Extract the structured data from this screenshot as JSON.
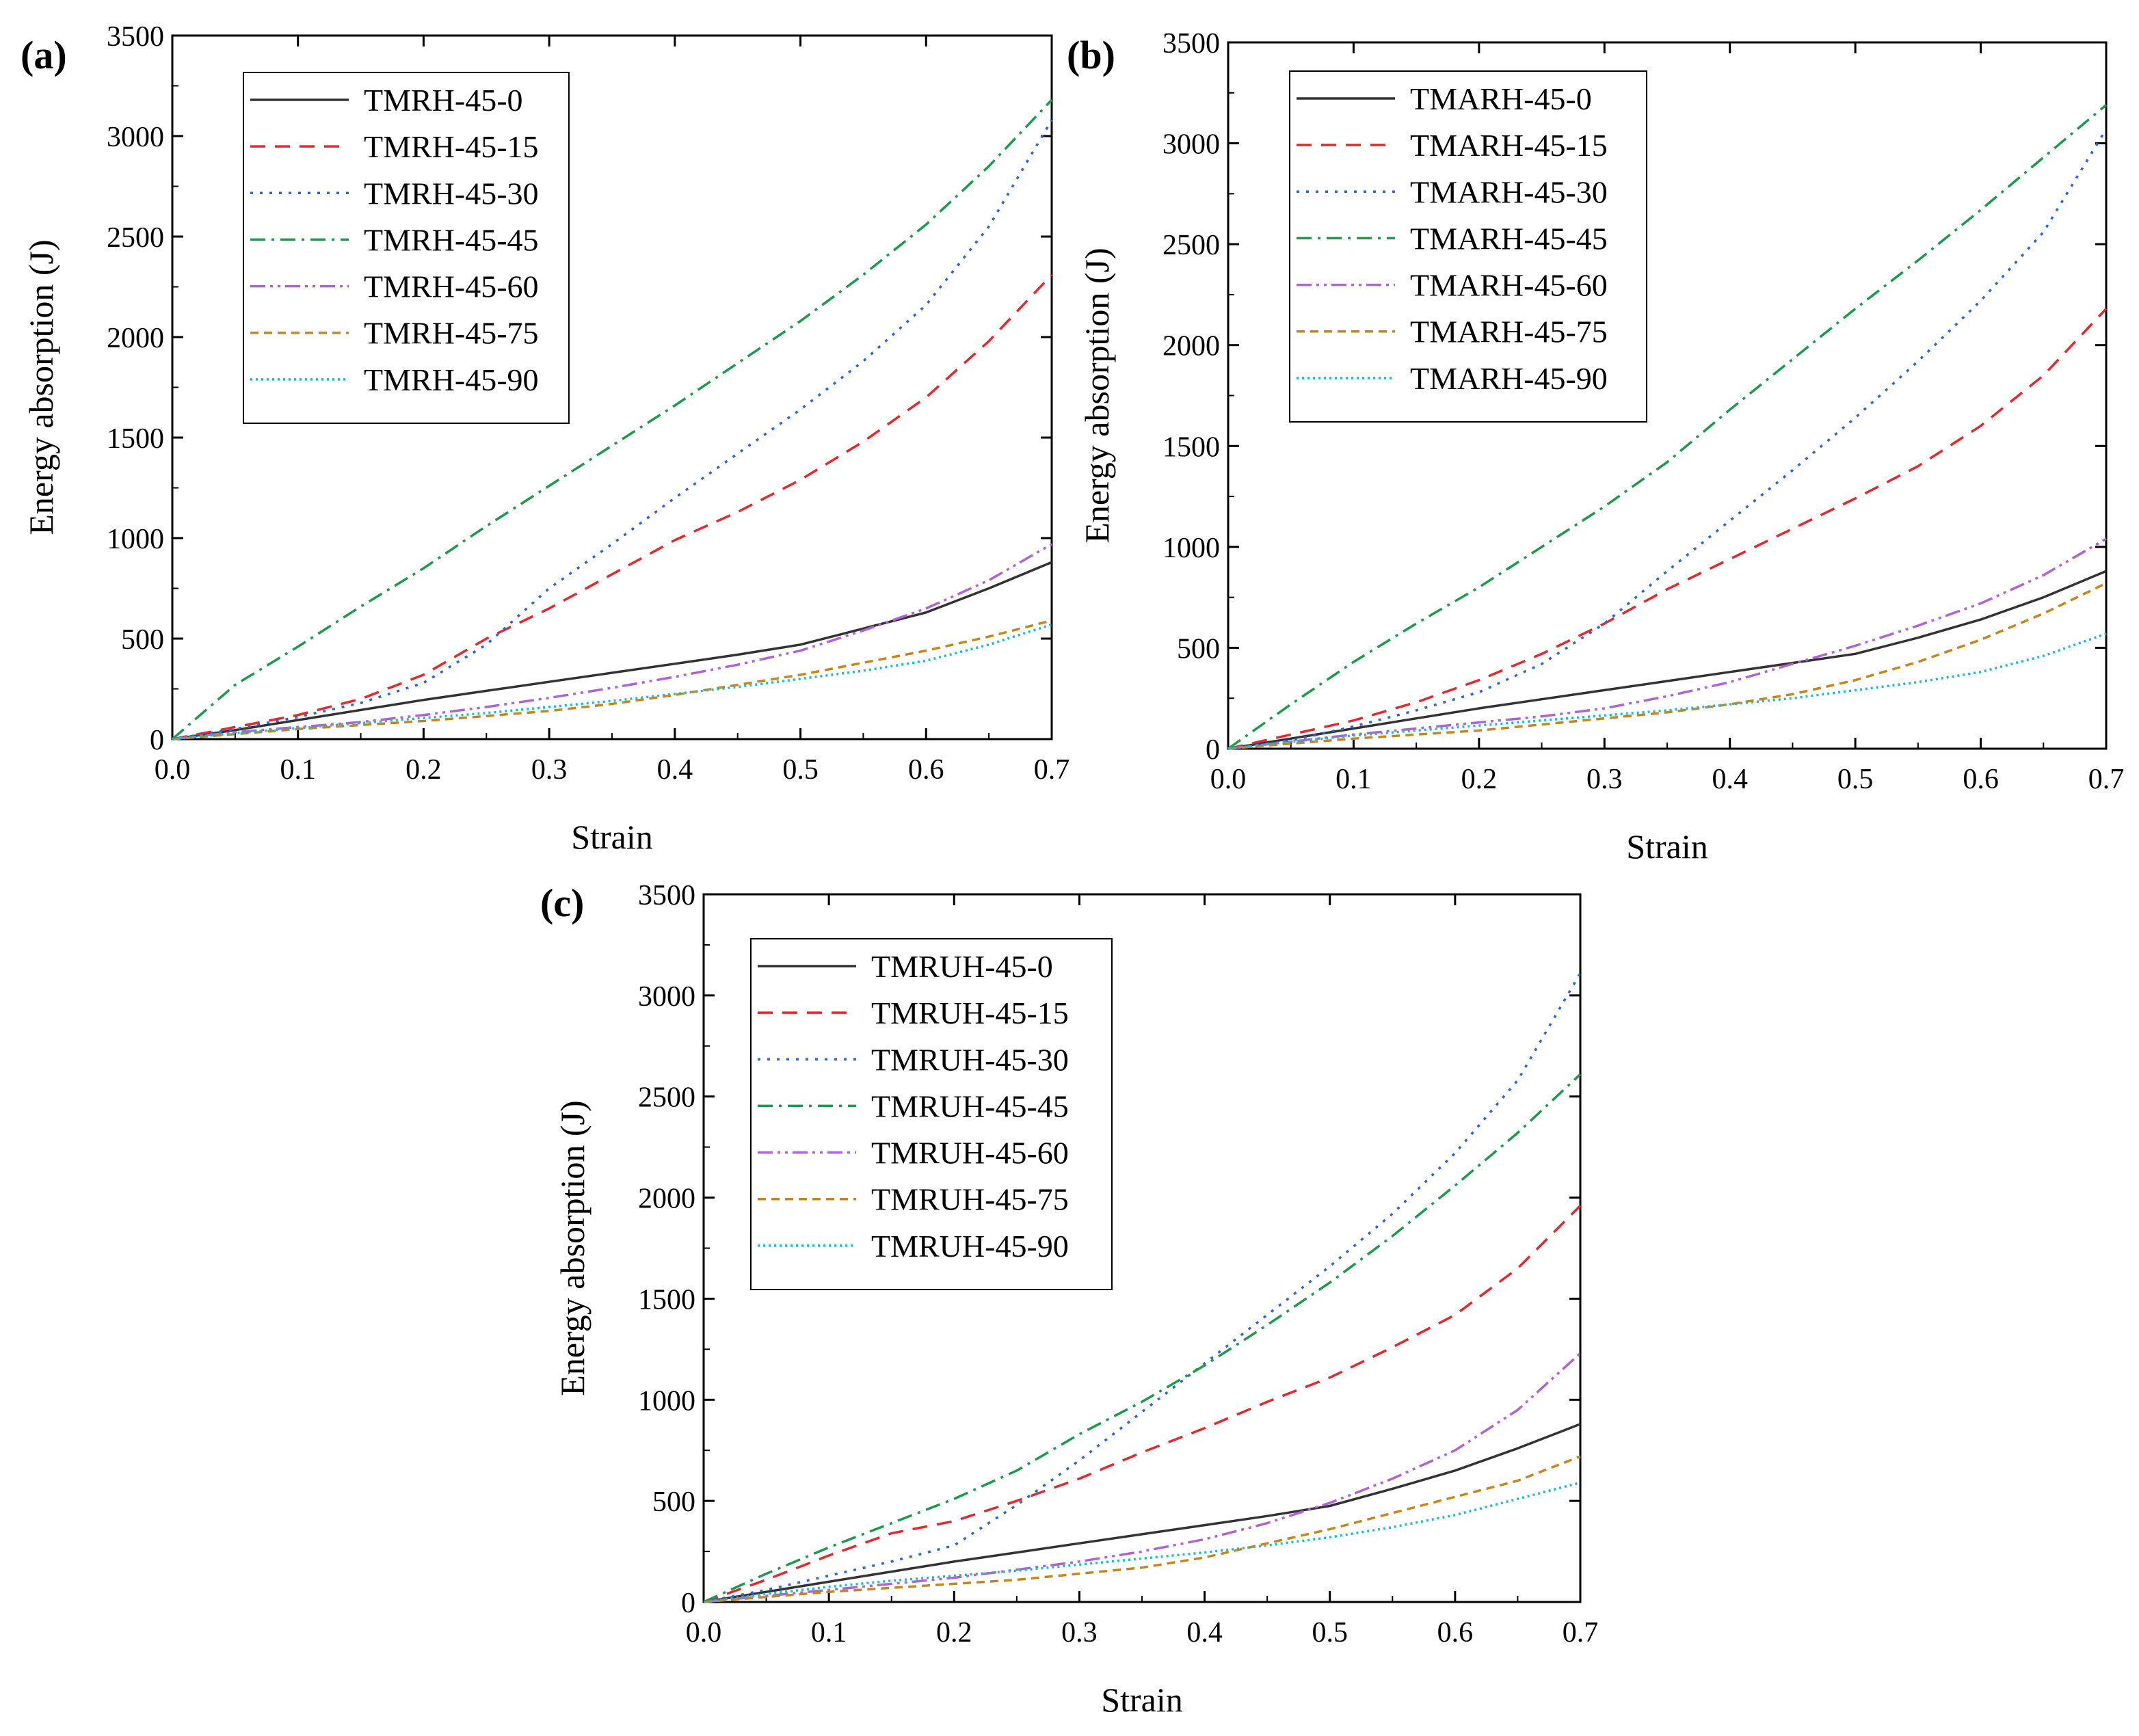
{
  "chart_data": [
    {
      "panel_label": "(a)",
      "type": "line",
      "xlabel": "Strain",
      "ylabel": "Energy absorption (J)",
      "xlim": [
        0,
        0.7
      ],
      "ylim": [
        0,
        3500
      ],
      "xticks": [
        "0.0",
        "0.1",
        "0.2",
        "0.3",
        "0.4",
        "0.5",
        "0.6",
        "0.7"
      ],
      "yticks": [
        "0",
        "500",
        "1000",
        "1500",
        "2000",
        "2500",
        "3000",
        "3500"
      ],
      "legend_position": "top-left",
      "x": [
        0,
        0.05,
        0.1,
        0.15,
        0.2,
        0.25,
        0.3,
        0.35,
        0.4,
        0.45,
        0.5,
        0.55,
        0.6,
        0.65,
        0.7
      ],
      "series": [
        {
          "name": "TMRH-45-0",
          "color": "#333333",
          "dash": "solid",
          "values": [
            0,
            45,
            95,
            145,
            195,
            240,
            285,
            330,
            375,
            420,
            470,
            550,
            630,
            750,
            880
          ]
        },
        {
          "name": "TMRH-45-15",
          "color": "#e8262b",
          "dash": "dash",
          "values": [
            0,
            60,
            120,
            200,
            320,
            500,
            650,
            820,
            990,
            1130,
            1290,
            1480,
            1700,
            1980,
            2310
          ]
        },
        {
          "name": "TMRH-45-30",
          "color": "#2b63d8",
          "dash": "dot",
          "values": [
            0,
            50,
            110,
            180,
            280,
            470,
            750,
            970,
            1200,
            1420,
            1640,
            1880,
            2160,
            2550,
            3080
          ]
        },
        {
          "name": "TMRH-45-45",
          "color": "#1a9a4a",
          "dash": "dashdot",
          "values": [
            0,
            270,
            460,
            660,
            850,
            1060,
            1260,
            1460,
            1660,
            1870,
            2080,
            2310,
            2560,
            2850,
            3180
          ]
        },
        {
          "name": "TMRH-45-60",
          "color": "#b063d8",
          "dash": "dashdotdot",
          "values": [
            0,
            35,
            60,
            85,
            120,
            160,
            205,
            255,
            310,
            370,
            440,
            540,
            650,
            790,
            970
          ]
        },
        {
          "name": "TMRH-45-75",
          "color": "#c8861a",
          "dash": "shortdash",
          "values": [
            0,
            25,
            50,
            70,
            90,
            115,
            140,
            175,
            220,
            270,
            320,
            380,
            440,
            510,
            590
          ]
        },
        {
          "name": "TMRH-45-90",
          "color": "#17bcd4",
          "dash": "densedot",
          "values": [
            0,
            30,
            55,
            80,
            105,
            130,
            160,
            190,
            225,
            260,
            300,
            340,
            390,
            470,
            570
          ]
        }
      ]
    },
    {
      "panel_label": "(b)",
      "type": "line",
      "xlabel": "Strain",
      "ylabel": "Energy absorption (J)",
      "xlim": [
        0,
        0.7
      ],
      "ylim": [
        0,
        3500
      ],
      "xticks": [
        "0.0",
        "0.1",
        "0.2",
        "0.3",
        "0.4",
        "0.5",
        "0.6",
        "0.7"
      ],
      "yticks": [
        "0",
        "500",
        "1000",
        "1500",
        "2000",
        "2500",
        "3000",
        "3500"
      ],
      "legend_position": "top-left",
      "x": [
        0,
        0.05,
        0.1,
        0.15,
        0.2,
        0.25,
        0.3,
        0.35,
        0.4,
        0.45,
        0.5,
        0.55,
        0.6,
        0.65,
        0.7
      ],
      "series": [
        {
          "name": "TMARH-45-0",
          "color": "#333333",
          "dash": "solid",
          "values": [
            0,
            50,
            100,
            150,
            200,
            245,
            290,
            335,
            380,
            425,
            470,
            550,
            640,
            750,
            880
          ]
        },
        {
          "name": "TMARH-45-15",
          "color": "#e8262b",
          "dash": "dash",
          "values": [
            0,
            70,
            140,
            230,
            340,
            470,
            620,
            790,
            940,
            1090,
            1240,
            1400,
            1600,
            1850,
            2180
          ]
        },
        {
          "name": "TMARH-45-30",
          "color": "#2b63d8",
          "dash": "dot",
          "values": [
            0,
            40,
            110,
            190,
            280,
            420,
            620,
            880,
            1130,
            1380,
            1640,
            1920,
            2220,
            2560,
            3070
          ]
        },
        {
          "name": "TMARH-45-45",
          "color": "#1a9a4a",
          "dash": "dashdot",
          "values": [
            0,
            220,
            430,
            620,
            800,
            1000,
            1200,
            1420,
            1680,
            1930,
            2180,
            2420,
            2670,
            2930,
            3190
          ]
        },
        {
          "name": "TMARH-45-60",
          "color": "#b063d8",
          "dash": "dashdotdot",
          "values": [
            0,
            35,
            70,
            100,
            130,
            160,
            200,
            260,
            330,
            420,
            510,
            610,
            720,
            860,
            1040
          ]
        },
        {
          "name": "TMARH-45-75",
          "color": "#c8861a",
          "dash": "shortdash",
          "values": [
            0,
            25,
            50,
            70,
            90,
            120,
            150,
            180,
            220,
            270,
            340,
            430,
            540,
            670,
            820
          ]
        },
        {
          "name": "TMARH-45-90",
          "color": "#17bcd4",
          "dash": "densedot",
          "values": [
            0,
            35,
            65,
            90,
            115,
            140,
            165,
            190,
            220,
            250,
            290,
            330,
            380,
            460,
            570
          ]
        }
      ]
    },
    {
      "panel_label": "(c)",
      "type": "line",
      "xlabel": "Strain",
      "ylabel": "Energy absorption (J)",
      "xlim": [
        0,
        0.7
      ],
      "ylim": [
        0,
        3500
      ],
      "xticks": [
        "0.0",
        "0.1",
        "0.2",
        "0.3",
        "0.4",
        "0.5",
        "0.6",
        "0.7"
      ],
      "yticks": [
        "0",
        "500",
        "1000",
        "1500",
        "2000",
        "2500",
        "3000",
        "3500"
      ],
      "legend_position": "top-left",
      "x": [
        0,
        0.05,
        0.1,
        0.15,
        0.2,
        0.25,
        0.3,
        0.35,
        0.4,
        0.45,
        0.5,
        0.55,
        0.6,
        0.65,
        0.7
      ],
      "series": [
        {
          "name": "TMRUH-45-0",
          "color": "#333333",
          "dash": "solid",
          "values": [
            0,
            50,
            100,
            150,
            200,
            245,
            290,
            335,
            380,
            425,
            475,
            560,
            650,
            760,
            880
          ]
        },
        {
          "name": "TMRUH-45-15",
          "color": "#e8262b",
          "dash": "dash",
          "values": [
            0,
            110,
            230,
            340,
            400,
            500,
            610,
            740,
            860,
            990,
            1110,
            1260,
            1420,
            1650,
            1960
          ]
        },
        {
          "name": "TMRUH-45-30",
          "color": "#2b63d8",
          "dash": "dot",
          "values": [
            0,
            60,
            130,
            200,
            280,
            480,
            700,
            940,
            1180,
            1420,
            1660,
            1920,
            2220,
            2580,
            3110
          ]
        },
        {
          "name": "TMRUH-45-45",
          "color": "#1a9a4a",
          "dash": "dashdot",
          "values": [
            0,
            140,
            270,
            390,
            510,
            650,
            830,
            990,
            1170,
            1370,
            1580,
            1810,
            2060,
            2320,
            2610
          ]
        },
        {
          "name": "TMRUH-45-60",
          "color": "#b063d8",
          "dash": "dashdotdot",
          "values": [
            0,
            30,
            60,
            90,
            120,
            160,
            200,
            250,
            310,
            390,
            490,
            610,
            750,
            950,
            1230
          ]
        },
        {
          "name": "TMRUH-45-75",
          "color": "#c8861a",
          "dash": "shortdash",
          "values": [
            0,
            25,
            50,
            70,
            90,
            110,
            140,
            170,
            220,
            290,
            360,
            440,
            520,
            600,
            720
          ]
        },
        {
          "name": "TMRUH-45-90",
          "color": "#17bcd4",
          "dash": "densedot",
          "values": [
            0,
            40,
            75,
            105,
            130,
            155,
            185,
            215,
            245,
            280,
            320,
            370,
            430,
            510,
            590
          ]
        }
      ]
    }
  ]
}
